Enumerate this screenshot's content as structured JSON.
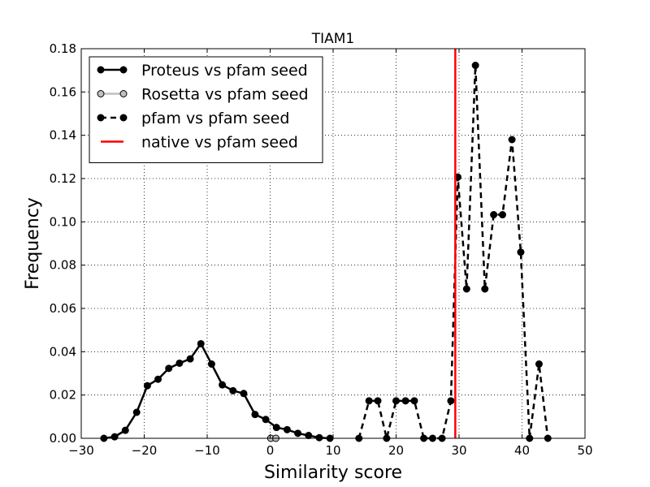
{
  "chart_data": {
    "type": "line",
    "title": "TIAM1",
    "xlabel": "Similarity score",
    "ylabel": "Frequency",
    "xlim": [
      -30,
      50
    ],
    "ylim": [
      0,
      0.18
    ],
    "xticks": [
      -30,
      -20,
      -10,
      0,
      10,
      20,
      30,
      40,
      50
    ],
    "xtick_labels": [
      "−30",
      "−20",
      "−10",
      "0",
      "10",
      "20",
      "30",
      "40",
      "50"
    ],
    "yticks": [
      0,
      0.02,
      0.04,
      0.06,
      0.08,
      0.1,
      0.12,
      0.14,
      0.16,
      0.18
    ],
    "ytick_labels": [
      "0.00",
      "0.02",
      "0.04",
      "0.06",
      "0.08",
      "0.10",
      "0.12",
      "0.14",
      "0.16",
      "0.18"
    ],
    "grid": true,
    "legend_position": "top-left",
    "series": [
      {
        "name": "Proteus vs pfam seed",
        "style": "solid",
        "color": "#000000",
        "marker_fill": "#000000",
        "x": [
          -26.4,
          -24.7,
          -23.0,
          -21.2,
          -19.5,
          -17.8,
          -16.1,
          -14.4,
          -12.7,
          -11.0,
          -9.3,
          -7.6,
          -5.9,
          -4.2,
          -2.4,
          -0.7,
          1.0,
          2.7,
          4.4,
          6.1,
          7.8,
          9.5
        ],
        "y": [
          0.0,
          0.0007,
          0.0037,
          0.012,
          0.0243,
          0.0273,
          0.0323,
          0.0347,
          0.0367,
          0.0437,
          0.0343,
          0.0247,
          0.022,
          0.0207,
          0.011,
          0.0087,
          0.005,
          0.004,
          0.0023,
          0.0013,
          0.0003,
          0.0
        ]
      },
      {
        "name": "Rosetta vs pfam seed",
        "style": "solid",
        "color": "#c0c0c0",
        "marker_fill": "#c0c0c0",
        "x": [
          0.1,
          0.9
        ],
        "y": [
          0.0,
          0.0
        ]
      },
      {
        "name": "pfam vs pfam seed",
        "style": "dashed",
        "color": "#000000",
        "marker_fill": "#000000",
        "x": [
          14.1,
          15.7,
          17.1,
          18.5,
          20.0,
          21.5,
          22.9,
          24.4,
          25.8,
          27.3,
          28.7,
          29.8,
          31.2,
          32.6,
          34.1,
          35.5,
          36.9,
          38.4,
          39.8,
          41.2,
          42.7,
          44.1
        ],
        "y": [
          0.0,
          0.0173,
          0.0173,
          0.0,
          0.0173,
          0.0173,
          0.0173,
          0.0,
          0.0,
          0.0,
          0.0173,
          0.1207,
          0.069,
          0.1723,
          0.069,
          0.1033,
          0.1033,
          0.138,
          0.086,
          0.0,
          0.0343,
          0.0
        ]
      },
      {
        "name": "native vs pfam seed",
        "style": "vline",
        "color": "#ff0000",
        "x": 29.4
      }
    ]
  }
}
